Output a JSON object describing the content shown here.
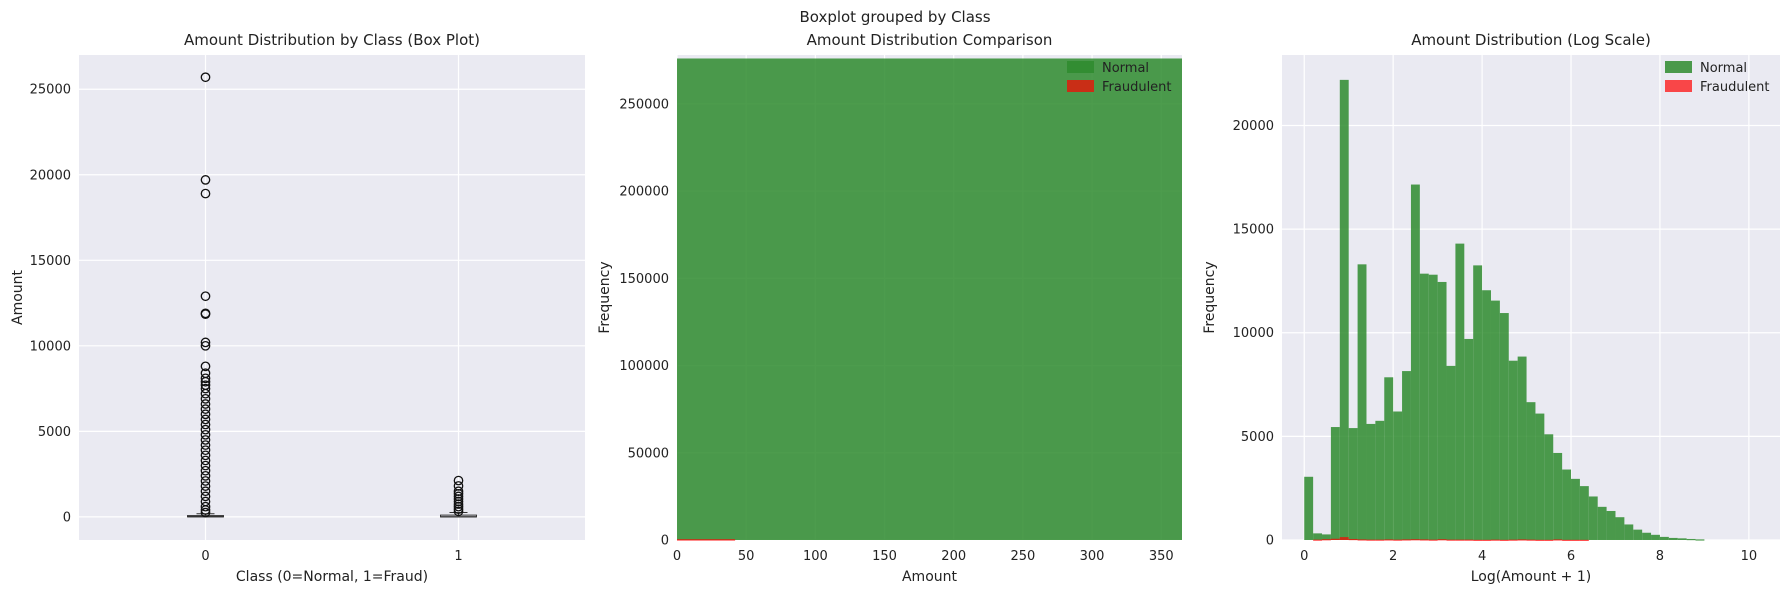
{
  "suptitle": "Boxplot grouped by Class",
  "colors": {
    "normal": "#2e8b2e",
    "fraud": "#ff0000",
    "panel_bg": "#eaeaf2",
    "grid": "#ffffff"
  },
  "chart_data": [
    {
      "type": "box",
      "title": "Amount Distribution by Class (Box Plot)",
      "xlabel": "Class (0=Normal, 1=Fraud)",
      "ylabel": "Amount",
      "ylim": [
        -1350,
        27000
      ],
      "xlim": [
        -0.5,
        1.5
      ],
      "yticks": [
        0,
        5000,
        10000,
        15000,
        20000,
        25000
      ],
      "xticks": [
        0,
        1
      ],
      "categories": [
        "0",
        "1"
      ],
      "boxes": [
        {
          "category": "0",
          "q1": 5,
          "median": 22,
          "q3": 77,
          "whisker_low": 0,
          "whisker_high": 185,
          "outliers": [
            25700,
            19700,
            18900,
            12900,
            11900,
            11850,
            10200,
            10000,
            8800,
            8400,
            8100,
            7900,
            7700,
            7500,
            7200,
            6900,
            6600,
            6300,
            6000,
            5700,
            5400,
            5100,
            4800,
            4500,
            4200,
            3900,
            3600,
            3300,
            3000,
            2700,
            2400,
            2100,
            1800,
            1500,
            1200,
            900,
            600,
            400,
            250
          ]
        },
        {
          "category": "1",
          "q1": 1,
          "median": 9,
          "q3": 105,
          "whisker_low": 0,
          "whisker_high": 260,
          "outliers": [
            2125,
            1810,
            1500,
            1350,
            1200,
            1050,
            900,
            750,
            600,
            450,
            320
          ]
        }
      ]
    },
    {
      "type": "histogram",
      "title": "Amount Distribution Comparison",
      "xlabel": "Amount",
      "ylabel": "Frequency",
      "xlim": [
        0,
        365
      ],
      "ylim": [
        0,
        278000
      ],
      "xticks": [
        0,
        50,
        100,
        150,
        200,
        250,
        300,
        350
      ],
      "yticks": [
        0,
        50000,
        100000,
        150000,
        200000,
        250000
      ],
      "legend": "top-right",
      "series": [
        {
          "name": "Normal",
          "color": "#2e8b2e",
          "opacity": 0.85,
          "bins": [
            {
              "x0": 0,
              "x1": 365,
              "count": 276000
            }
          ]
        },
        {
          "name": "Fraudulent",
          "color": "#ff0000",
          "opacity": 0.7,
          "bins": [
            {
              "x0": 0,
              "x1": 42,
              "count": 492
            }
          ]
        }
      ]
    },
    {
      "type": "histogram",
      "title": "Amount Distribution (Log Scale)",
      "xlabel": "Log(Amount + 1)",
      "ylabel": "Frequency",
      "xlim": [
        -0.5,
        10.7
      ],
      "ylim": [
        0,
        23400
      ],
      "xticks": [
        0,
        2,
        4,
        6,
        8,
        10
      ],
      "yticks": [
        0,
        5000,
        10000,
        15000,
        20000
      ],
      "legend": "top-right",
      "bin_start": 0,
      "bin_width": 0.2,
      "series": [
        {
          "name": "Normal",
          "color": "#2e8b2e",
          "opacity": 0.85,
          "counts": [
            3050,
            320,
            270,
            5450,
            22200,
            5400,
            13300,
            5600,
            5750,
            7850,
            6200,
            8150,
            17150,
            12850,
            12800,
            12450,
            8400,
            14300,
            9700,
            13250,
            12050,
            11550,
            10950,
            8650,
            8850,
            6650,
            6100,
            5100,
            4200,
            3400,
            2950,
            2600,
            2100,
            1600,
            1400,
            1100,
            750,
            500,
            350,
            250,
            150,
            100,
            80,
            50,
            30
          ]
        },
        {
          "name": "Fraudulent",
          "color": "#ff0000",
          "opacity": 0.7,
          "counts": [
            0,
            20,
            40,
            60,
            140,
            50,
            30,
            20,
            20,
            30,
            20,
            30,
            40,
            30,
            20,
            40,
            20,
            20,
            20,
            10,
            10,
            20,
            10,
            20,
            30,
            20,
            10,
            10,
            30,
            10,
            10,
            10,
            0,
            0,
            0,
            0,
            0,
            0,
            0,
            0,
            0,
            0,
            0,
            0,
            0
          ]
        }
      ]
    }
  ]
}
